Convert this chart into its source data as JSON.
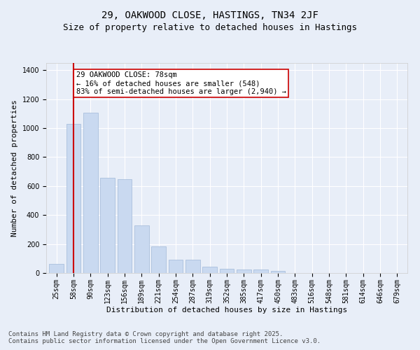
{
  "title": "29, OAKWOOD CLOSE, HASTINGS, TN34 2JF",
  "subtitle": "Size of property relative to detached houses in Hastings",
  "xlabel": "Distribution of detached houses by size in Hastings",
  "ylabel": "Number of detached properties",
  "categories": [
    "25sqm",
    "58sqm",
    "90sqm",
    "123sqm",
    "156sqm",
    "189sqm",
    "221sqm",
    "254sqm",
    "287sqm",
    "319sqm",
    "352sqm",
    "385sqm",
    "417sqm",
    "450sqm",
    "483sqm",
    "516sqm",
    "548sqm",
    "581sqm",
    "614sqm",
    "646sqm",
    "679sqm"
  ],
  "values": [
    65,
    1030,
    1105,
    655,
    650,
    330,
    185,
    90,
    90,
    45,
    30,
    25,
    25,
    15,
    0,
    0,
    0,
    0,
    0,
    0,
    0
  ],
  "bar_color": "#c9d9f0",
  "bar_edge_color": "#a0b8d8",
  "vline_x": 1.0,
  "vline_color": "#cc0000",
  "annotation_text": "29 OAKWOOD CLOSE: 78sqm\n← 16% of detached houses are smaller (548)\n83% of semi-detached houses are larger (2,940) →",
  "annotation_box_color": "#ffffff",
  "annotation_box_edge": "#cc0000",
  "ylim": [
    0,
    1450
  ],
  "yticks": [
    0,
    200,
    400,
    600,
    800,
    1000,
    1200,
    1400
  ],
  "bg_color": "#e8eef8",
  "plot_bg_color": "#e8eef8",
  "grid_color": "#ffffff",
  "footer_line1": "Contains HM Land Registry data © Crown copyright and database right 2025.",
  "footer_line2": "Contains public sector information licensed under the Open Government Licence v3.0.",
  "title_fontsize": 10,
  "subtitle_fontsize": 9,
  "axis_label_fontsize": 8,
  "tick_fontsize": 7,
  "annotation_fontsize": 7.5,
  "footer_fontsize": 6.5
}
